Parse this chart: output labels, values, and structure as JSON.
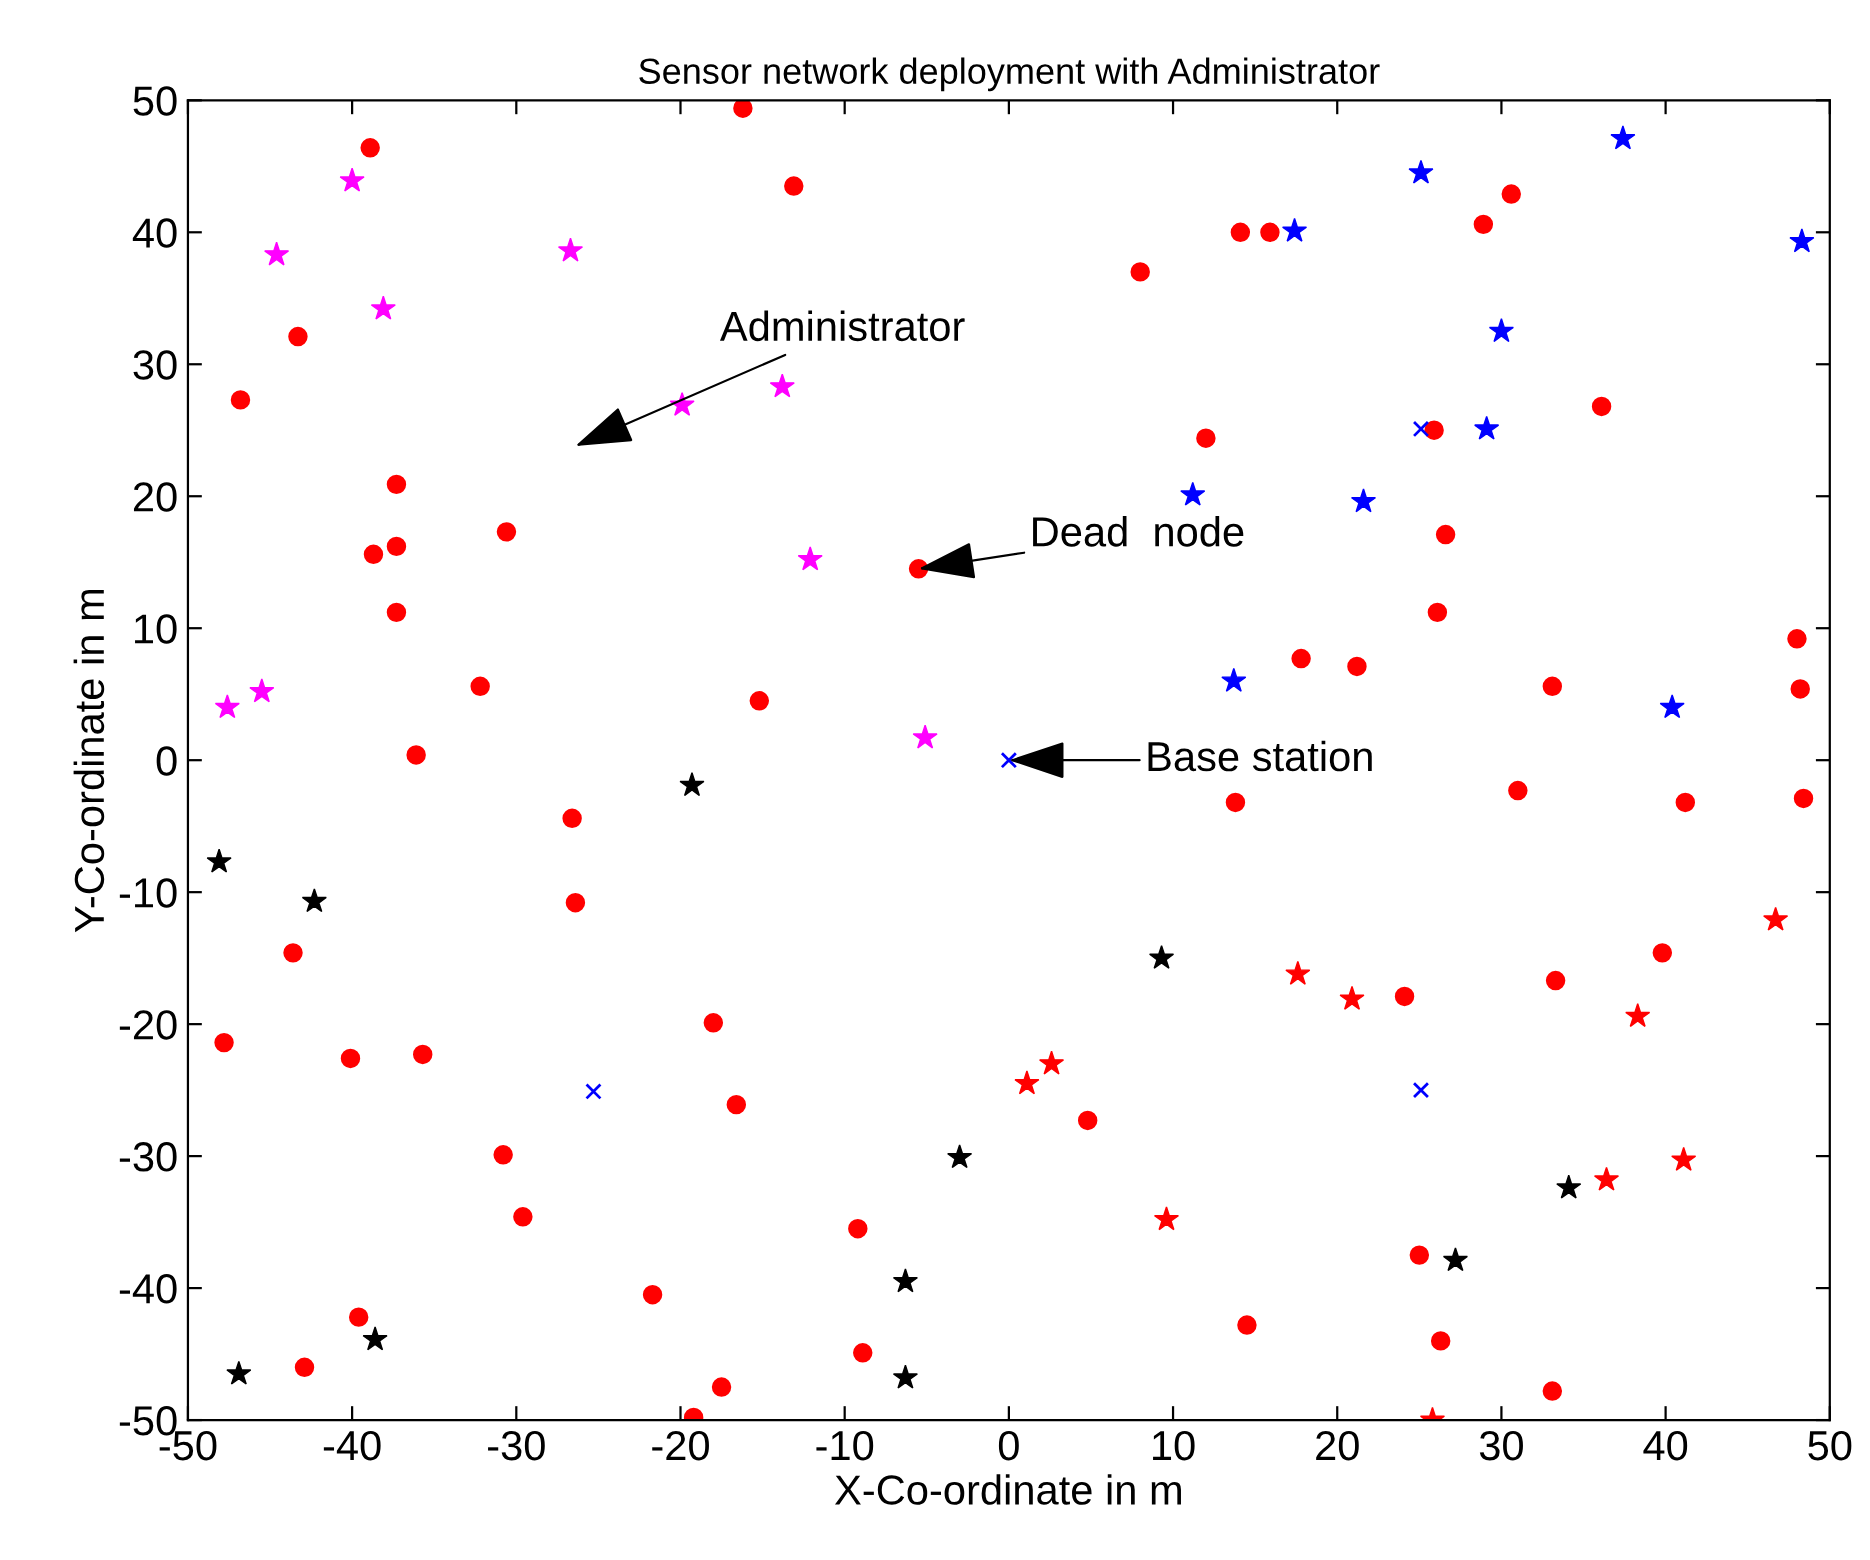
{
  "chart_data": {
    "type": "scatter",
    "title": "Sensor network deployment with Administrator",
    "xlabel": "X-Co-ordinate in m",
    "ylabel": "Y-Co-ordinate in m",
    "xlim": [
      -50,
      50
    ],
    "ylim": [
      -50,
      50
    ],
    "xticks": [
      -50,
      -40,
      -30,
      -20,
      -10,
      0,
      10,
      20,
      30,
      40,
      50
    ],
    "yticks": [
      -50,
      -40,
      -30,
      -20,
      -10,
      0,
      10,
      20,
      30,
      40,
      50
    ],
    "grid": false,
    "legend": false,
    "series": [
      {
        "color": "#ff0000",
        "marker": "circle",
        "x": [
          -38.9,
          -16.2,
          -13.1,
          -43.3,
          -46.8,
          -37.3,
          -30.6,
          -38.7,
          -37.3,
          -37.3,
          -32.2,
          -36.1,
          -15.2,
          -5.5,
          8.0,
          14.1,
          15.9,
          28.9,
          30.6,
          12.0,
          25.9,
          36.1,
          26.6,
          26.1,
          17.8,
          21.2,
          33.1,
          48.0,
          48.2,
          -26.6,
          -26.4,
          -43.6,
          -47.8,
          -40.1,
          -35.7,
          -18.0,
          -16.6,
          -30.8,
          -29.6,
          -21.7,
          -9.2,
          -39.6,
          -42.9,
          -8.9,
          -17.5,
          -19.2,
          13.8,
          31.0,
          41.2,
          48.4,
          24.1,
          33.3,
          39.8,
          4.8,
          25.0,
          14.5,
          26.3,
          33.1
        ],
        "values": [
          46.4,
          49.4,
          43.5,
          32.1,
          27.3,
          20.9,
          17.3,
          15.6,
          16.2,
          11.2,
          5.6,
          0.4,
          4.5,
          14.5,
          37.0,
          40.0,
          40.0,
          40.6,
          42.9,
          24.4,
          25.0,
          26.8,
          17.1,
          11.2,
          7.7,
          7.1,
          5.6,
          9.2,
          5.4,
          -4.4,
          -10.8,
          -14.6,
          -21.4,
          -22.6,
          -22.3,
          -19.9,
          -26.1,
          -29.9,
          -34.6,
          -40.5,
          -35.5,
          -42.2,
          -46.0,
          -44.9,
          -47.5,
          -49.8,
          -3.2,
          -2.3,
          -3.2,
          -2.9,
          -17.9,
          -16.7,
          -14.6,
          -27.3,
          -37.5,
          -42.8,
          -44.0,
          -47.8
        ]
      },
      {
        "color": "#ff00ff",
        "marker": "star",
        "x": [
          -40.0,
          -44.6,
          -26.7,
          -38.1,
          -13.8,
          -19.9,
          -12.1,
          -47.6,
          -45.5,
          -5.1
        ],
        "values": [
          43.9,
          38.3,
          38.6,
          34.2,
          28.3,
          26.9,
          15.2,
          4.0,
          5.2,
          1.7
        ]
      },
      {
        "color": "#0000ff",
        "marker": "star",
        "x": [
          17.4,
          25.1,
          37.4,
          48.3,
          30.0,
          29.1,
          11.2,
          21.6,
          13.7,
          40.4
        ],
        "values": [
          40.1,
          44.5,
          47.1,
          39.3,
          32.5,
          25.1,
          20.1,
          19.6,
          6.0,
          4.0
        ]
      },
      {
        "color": "#ff0000",
        "marker": "star",
        "x": [
          46.7,
          17.6,
          20.9,
          38.3,
          1.1,
          2.6,
          9.6,
          36.4,
          41.1,
          25.8
        ],
        "values": [
          -12.1,
          -16.2,
          -18.1,
          -19.4,
          -24.5,
          -23.0,
          -34.8,
          -31.8,
          -30.3,
          -50.0
        ]
      },
      {
        "color": "#000000",
        "marker": "star",
        "x": [
          -19.3,
          -48.1,
          -42.3,
          -3.0,
          -6.3,
          -38.6,
          -46.9,
          -6.3,
          9.3,
          34.1,
          27.2
        ],
        "values": [
          -1.9,
          -7.7,
          -10.7,
          -30.1,
          -39.5,
          -43.9,
          -46.5,
          -46.8,
          -15.0,
          -32.4,
          -37.9
        ]
      },
      {
        "color": "#0000ff",
        "marker": "cross",
        "x": [
          25.1,
          -25.3,
          25.1,
          0
        ],
        "values": [
          25.1,
          -25.1,
          -25.0,
          0
        ]
      }
    ],
    "annotations": [
      "Administrator",
      {
        "text": "Dead  node",
        "x": -5.5,
        "y": 14.5
      },
      "Base station"
    ]
  }
}
